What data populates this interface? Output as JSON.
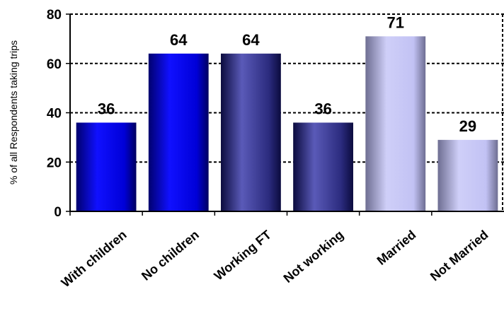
{
  "chart_data": {
    "type": "bar",
    "categories": [
      "With children",
      "No children",
      "Working FT",
      "Not working",
      "Married",
      "Not Married"
    ],
    "values": [
      36,
      64,
      64,
      36,
      71,
      29
    ],
    "data_labels": [
      "36",
      "64",
      "64",
      "36",
      "71",
      "29"
    ],
    "title": "",
    "xlabel": "",
    "ylabel": "% of all Respondents taking trips",
    "ylim": [
      0,
      80
    ],
    "yticks": [
      0,
      20,
      40,
      60,
      80
    ],
    "grid": "horizontal dashed",
    "legend": "none",
    "bar_styles": [
      "bright-blue",
      "bright-blue",
      "navy",
      "navy",
      "lavender",
      "lavender"
    ],
    "colors": {
      "bright-blue": [
        "#00006e",
        "#1010ff",
        "#0000d8",
        "#000060"
      ],
      "navy": [
        "#0b0b3e",
        "#5a5ab8",
        "#2b2b7e",
        "#0b0b3e"
      ],
      "lavender": [
        "#6e6e92",
        "#cfcff8",
        "#c2c2f4",
        "#6e6e92"
      ]
    }
  }
}
